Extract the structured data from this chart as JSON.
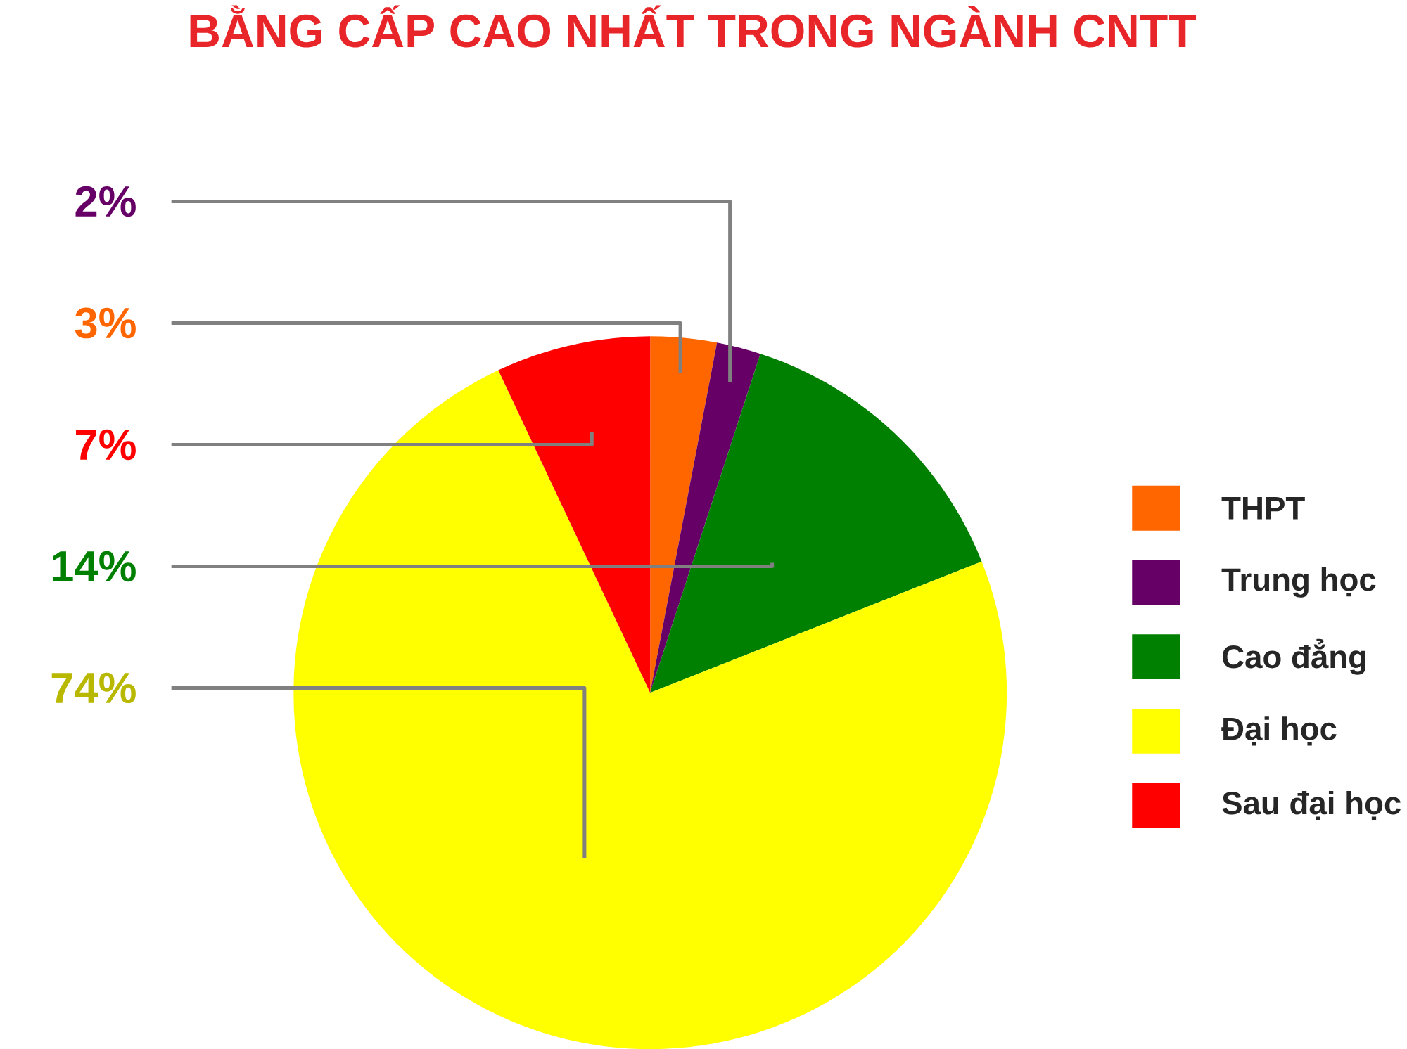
{
  "chart_data": {
    "type": "pie",
    "title": "BẰNG CẤP CAO NHẤT TRONG NGÀNH CNTT",
    "categories": [
      "THPT",
      "Trung học",
      "Cao đẳng",
      "Đại học",
      "Sau đại học"
    ],
    "values": [
      3,
      2,
      14,
      74,
      7
    ],
    "colors": [
      "#ff6600",
      "#660066",
      "#008000",
      "#ffff00",
      "#ff0000"
    ],
    "value_labels": [
      "3%",
      "2%",
      "14%",
      "74%",
      "7%"
    ],
    "legend": "right"
  }
}
